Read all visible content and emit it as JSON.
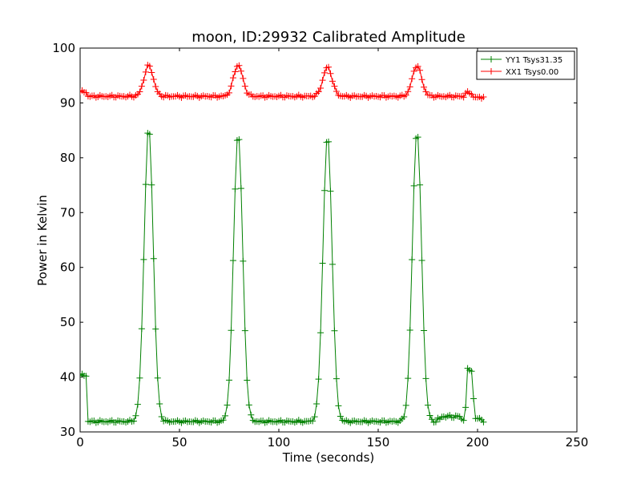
{
  "chart_data": {
    "type": "line",
    "title": "moon, ID:29932 Calibrated Amplitude",
    "xlabel": "Time (seconds)",
    "ylabel": "Power in Kelvin",
    "xlim": [
      0,
      250
    ],
    "ylim": [
      30,
      100
    ],
    "xticks": [
      0,
      50,
      100,
      150,
      200,
      250
    ],
    "yticks": [
      30,
      40,
      50,
      60,
      70,
      80,
      90,
      100
    ],
    "xtick_labels": [
      "0",
      "50",
      "100",
      "150",
      "200",
      "250"
    ],
    "ytick_labels": [
      "30",
      "40",
      "50",
      "60",
      "70",
      "80",
      "90",
      "100"
    ],
    "grid": false,
    "legend_position": "top-right",
    "marker": "+",
    "series": [
      {
        "name": "YY1 Tsys31.35",
        "color": "#008000",
        "peaks": [
          34.5,
          79.5,
          124.5,
          169.5
        ],
        "peak_values": [
          85.5,
          84.5,
          84.0,
          85.0
        ],
        "peak_sigma": 2.3,
        "baseline": 31.9,
        "start": 0,
        "end": 203,
        "step": 1,
        "segments": [
          {
            "from": 0,
            "to": 4,
            "value": 40.3
          },
          {
            "from": 180,
            "to": 182,
            "value": 32.3
          },
          {
            "from": 182,
            "to": 192,
            "value": 32.8
          },
          {
            "from": 192,
            "to": 194,
            "value": 32.3
          },
          {
            "from": 194,
            "to": 195,
            "value": 34.5
          },
          {
            "from": 195,
            "to": 198,
            "value": 41.3
          },
          {
            "from": 198,
            "to": 199,
            "value": 36.0
          },
          {
            "from": 199,
            "to": 203,
            "value": 32.4
          }
        ]
      },
      {
        "name": "XX1 Tsys0.00",
        "color": "#ff0000",
        "peaks": [
          34.5,
          79.5,
          124.5,
          169.5
        ],
        "peak_values": [
          96.8,
          96.9,
          96.5,
          96.8
        ],
        "peak_sigma": 2.3,
        "baseline": 91.2,
        "start": 0,
        "end": 203,
        "step": 1,
        "segments": [
          {
            "from": 0,
            "to": 4,
            "value": 92.0
          },
          {
            "from": 194,
            "to": 198,
            "value": 91.8
          },
          {
            "from": 198,
            "to": 203,
            "value": 91.0
          }
        ]
      }
    ]
  }
}
